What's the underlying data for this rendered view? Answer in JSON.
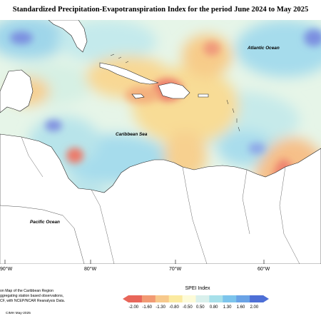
{
  "title": "Standardized Precipitation-Evapotranspiration Index for the period June 2024 to May 2025",
  "map": {
    "labels": {
      "atlantic": "Atlantic Ocean",
      "caribbean": "Caribbean Sea",
      "pacific": "Pacific Ocean"
    },
    "longitude_labels": [
      "90°W",
      "80°W",
      "70°W",
      "60°W"
    ]
  },
  "footnote_lines": [
    "on Map of the Caribbean Region",
    "ggregating station based observations,",
    "CF, with NCEP/NCAR Reanalysis Data."
  ],
  "legend": {
    "title": "SPEI Index",
    "ticks": [
      "-2.00",
      "-1.60",
      "-1.30",
      "-0.80",
      "-0.50",
      "0.50",
      "0.80",
      "1.30",
      "1.60",
      "2.00"
    ],
    "colors": [
      "#e8665a",
      "#f29a73",
      "#f7c98c",
      "#fbeaa0",
      "#fdfbd8",
      "#d9f0ec",
      "#a7e0ea",
      "#7cc4ec",
      "#6aa3e6",
      "#4d6fd6"
    ]
  },
  "credit": "CIMH May-2025"
}
